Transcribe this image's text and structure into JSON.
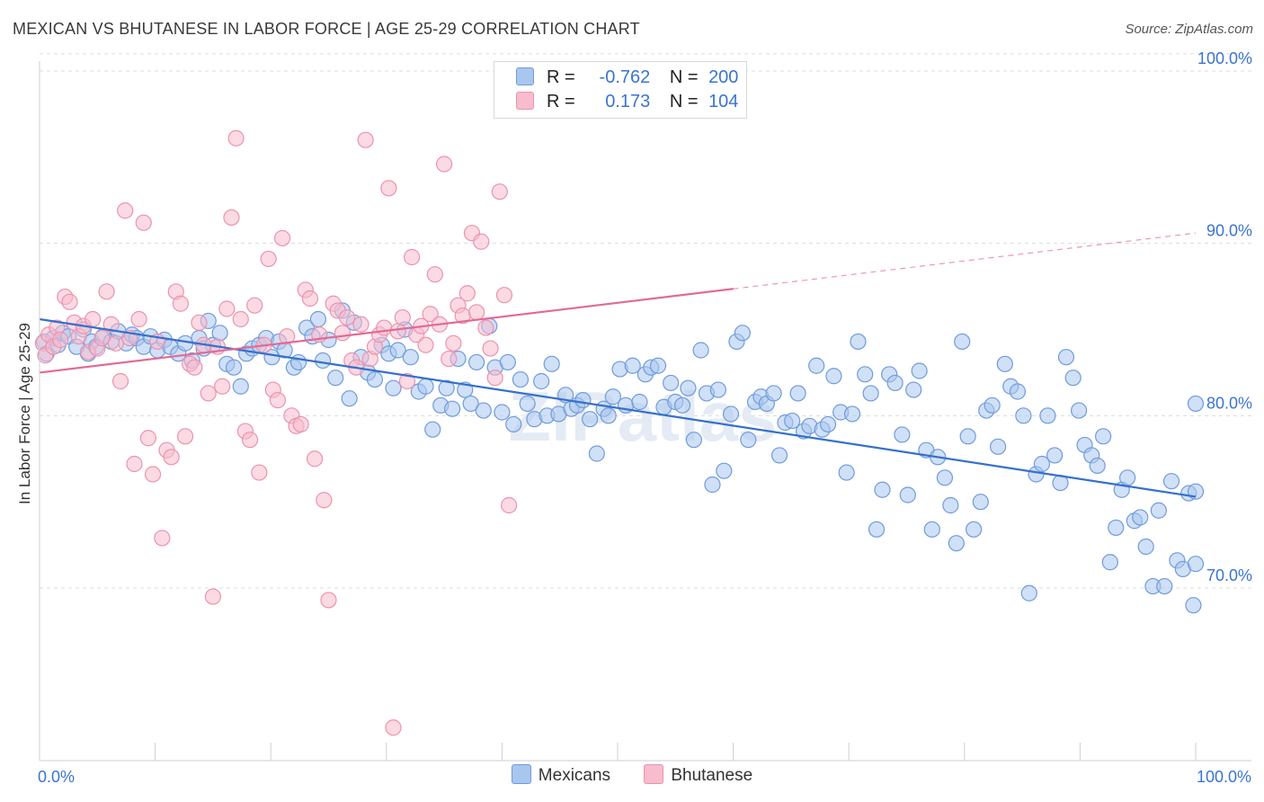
{
  "header": {
    "title": "MEXICAN VS BHUTANESE IN LABOR FORCE | AGE 25-29 CORRELATION CHART",
    "source": "Source: ZipAtlas.com"
  },
  "legend_top": {
    "rows": [
      {
        "r_label": "R =",
        "r_value": "-0.762",
        "n_label": "N =",
        "n_value": "200"
      },
      {
        "r_label": "R =",
        "r_value": "0.173",
        "n_label": "N =",
        "n_value": "104"
      }
    ]
  },
  "colors": {
    "mexicans_fill": "#a9c6ee",
    "mexicans_stroke": "#6f9bdc",
    "mexicans_line": "#3470cc",
    "bhutanese_fill": "#f7bccd",
    "bhutanese_stroke": "#ec92ae",
    "bhutanese_line": "#e36a94",
    "tick_text": "#3b74d1",
    "grid": "#dcdcdc"
  },
  "chart_data": {
    "type": "scatter",
    "title": "MEXICAN VS BHUTANESE IN LABOR FORCE | AGE 25-29 CORRELATION CHART",
    "xlabel": "",
    "ylabel": "In Labor Force | Age 25-29",
    "xlim": [
      0,
      100
    ],
    "ylim": [
      60,
      101
    ],
    "x_tick_labels": [
      "0.0%",
      "100.0%"
    ],
    "y_ticks": [
      70,
      80,
      90,
      100
    ],
    "y_tick_labels": [
      "70.0%",
      "80.0%",
      "90.0%",
      "100.0%"
    ],
    "grid": true,
    "legend_position": "top-center",
    "series": [
      {
        "name": "Mexicans",
        "R": -0.762,
        "N": 200,
        "trend": {
          "x": [
            0,
            100
          ],
          "y": [
            85.6,
            75.3
          ],
          "dashed_after": null
        },
        "points": [
          [
            0.4,
            84.3
          ],
          [
            0.6,
            83.6
          ],
          [
            1.2,
            84.5
          ],
          [
            1.6,
            84.1
          ],
          [
            2.0,
            84.8
          ],
          [
            2.5,
            84.6
          ],
          [
            3.2,
            84.0
          ],
          [
            3.8,
            85.0
          ],
          [
            4.2,
            83.6
          ],
          [
            4.5,
            84.3
          ],
          [
            4.9,
            84.0
          ],
          [
            5.5,
            84.6
          ],
          [
            6.2,
            84.3
          ],
          [
            6.8,
            84.9
          ],
          [
            7.5,
            84.2
          ],
          [
            8.0,
            84.7
          ],
          [
            8.4,
            84.5
          ],
          [
            9.0,
            84.0
          ],
          [
            9.6,
            84.6
          ],
          [
            10.2,
            83.8
          ],
          [
            10.8,
            84.4
          ],
          [
            11.3,
            84.0
          ],
          [
            12.0,
            83.6
          ],
          [
            12.6,
            84.2
          ],
          [
            13.2,
            83.2
          ],
          [
            13.8,
            84.5
          ],
          [
            14.2,
            83.9
          ],
          [
            14.6,
            85.5
          ],
          [
            15.0,
            84.1
          ],
          [
            15.6,
            84.8
          ],
          [
            16.2,
            83.0
          ],
          [
            16.8,
            82.8
          ],
          [
            17.4,
            81.7
          ],
          [
            17.9,
            83.6
          ],
          [
            18.4,
            83.9
          ],
          [
            19.0,
            84.1
          ],
          [
            19.6,
            84.5
          ],
          [
            20.1,
            83.4
          ],
          [
            20.7,
            84.3
          ],
          [
            21.2,
            83.8
          ],
          [
            22.0,
            82.8
          ],
          [
            22.4,
            83.1
          ],
          [
            23.1,
            85.1
          ],
          [
            23.6,
            84.6
          ],
          [
            24.1,
            85.6
          ],
          [
            24.5,
            83.2
          ],
          [
            25.0,
            84.4
          ],
          [
            25.6,
            82.2
          ],
          [
            26.2,
            86.1
          ],
          [
            26.8,
            81.0
          ],
          [
            27.2,
            85.4
          ],
          [
            27.8,
            83.4
          ],
          [
            28.4,
            82.5
          ],
          [
            29.0,
            82.1
          ],
          [
            29.6,
            84.1
          ],
          [
            30.2,
            83.6
          ],
          [
            30.6,
            81.6
          ],
          [
            31.0,
            83.8
          ],
          [
            31.6,
            85.0
          ],
          [
            32.1,
            83.4
          ],
          [
            32.8,
            81.4
          ],
          [
            33.4,
            81.7
          ],
          [
            34.0,
            79.2
          ],
          [
            34.7,
            80.6
          ],
          [
            35.2,
            81.6
          ],
          [
            35.7,
            80.4
          ],
          [
            36.2,
            83.3
          ],
          [
            36.8,
            81.5
          ],
          [
            37.3,
            80.7
          ],
          [
            37.8,
            83.1
          ],
          [
            38.4,
            80.3
          ],
          [
            38.9,
            85.2
          ],
          [
            39.4,
            82.8
          ],
          [
            40.0,
            80.2
          ],
          [
            40.5,
            83.1
          ],
          [
            41.0,
            79.5
          ],
          [
            41.6,
            82.1
          ],
          [
            42.2,
            80.7
          ],
          [
            42.8,
            79.8
          ],
          [
            43.4,
            82.0
          ],
          [
            43.9,
            80.0
          ],
          [
            44.3,
            83.0
          ],
          [
            44.9,
            80.1
          ],
          [
            45.5,
            81.2
          ],
          [
            46.0,
            80.4
          ],
          [
            46.5,
            80.6
          ],
          [
            47.0,
            80.9
          ],
          [
            47.6,
            79.8
          ],
          [
            48.2,
            77.8
          ],
          [
            48.8,
            80.4
          ],
          [
            49.2,
            80.0
          ],
          [
            49.6,
            81.1
          ],
          [
            50.2,
            82.7
          ],
          [
            50.7,
            80.6
          ],
          [
            51.3,
            82.9
          ],
          [
            51.9,
            80.8
          ],
          [
            52.4,
            82.4
          ],
          [
            52.9,
            82.8
          ],
          [
            53.5,
            82.9
          ],
          [
            54.0,
            80.5
          ],
          [
            54.6,
            81.9
          ],
          [
            55.0,
            80.8
          ],
          [
            55.6,
            80.6
          ],
          [
            56.1,
            81.6
          ],
          [
            56.6,
            78.6
          ],
          [
            57.2,
            83.8
          ],
          [
            57.7,
            81.3
          ],
          [
            58.2,
            76.0
          ],
          [
            58.7,
            81.5
          ],
          [
            59.2,
            76.8
          ],
          [
            59.8,
            80.1
          ],
          [
            60.3,
            84.3
          ],
          [
            60.8,
            84.8
          ],
          [
            61.3,
            78.6
          ],
          [
            61.9,
            80.8
          ],
          [
            62.4,
            81.1
          ],
          [
            62.9,
            80.7
          ],
          [
            63.5,
            81.3
          ],
          [
            64.0,
            77.7
          ],
          [
            64.5,
            79.6
          ],
          [
            65.1,
            79.7
          ],
          [
            65.6,
            81.3
          ],
          [
            66.1,
            79.1
          ],
          [
            66.6,
            79.4
          ],
          [
            67.2,
            82.9
          ],
          [
            67.7,
            79.2
          ],
          [
            68.2,
            79.5
          ],
          [
            68.7,
            82.3
          ],
          [
            69.3,
            80.2
          ],
          [
            69.8,
            76.7
          ],
          [
            70.3,
            80.1
          ],
          [
            70.8,
            84.3
          ],
          [
            71.4,
            82.4
          ],
          [
            71.9,
            81.3
          ],
          [
            72.4,
            73.4
          ],
          [
            72.9,
            75.7
          ],
          [
            73.5,
            82.4
          ],
          [
            74.0,
            81.9
          ],
          [
            74.6,
            78.9
          ],
          [
            75.1,
            75.4
          ],
          [
            75.6,
            81.5
          ],
          [
            76.1,
            82.6
          ],
          [
            76.7,
            78.0
          ],
          [
            77.2,
            73.4
          ],
          [
            77.7,
            77.6
          ],
          [
            78.3,
            76.4
          ],
          [
            78.8,
            74.8
          ],
          [
            79.3,
            72.6
          ],
          [
            79.8,
            84.3
          ],
          [
            80.3,
            78.8
          ],
          [
            80.8,
            73.4
          ],
          [
            81.4,
            75.0
          ],
          [
            81.9,
            80.3
          ],
          [
            82.4,
            80.6
          ],
          [
            82.9,
            78.2
          ],
          [
            83.5,
            83.0
          ],
          [
            84.0,
            81.7
          ],
          [
            84.6,
            81.4
          ],
          [
            85.1,
            80.0
          ],
          [
            85.6,
            69.7
          ],
          [
            86.2,
            76.6
          ],
          [
            86.7,
            77.2
          ],
          [
            87.2,
            80.0
          ],
          [
            87.8,
            77.7
          ],
          [
            88.3,
            76.1
          ],
          [
            88.8,
            83.4
          ],
          [
            89.4,
            82.2
          ],
          [
            89.9,
            80.3
          ],
          [
            90.4,
            78.3
          ],
          [
            91.0,
            77.7
          ],
          [
            91.5,
            77.1
          ],
          [
            92.0,
            78.8
          ],
          [
            92.6,
            71.5
          ],
          [
            93.1,
            73.5
          ],
          [
            93.6,
            75.7
          ],
          [
            94.1,
            76.4
          ],
          [
            94.7,
            73.9
          ],
          [
            95.2,
            74.1
          ],
          [
            95.7,
            72.4
          ],
          [
            96.3,
            70.1
          ],
          [
            96.8,
            74.5
          ],
          [
            97.3,
            70.1
          ],
          [
            97.9,
            76.2
          ],
          [
            98.4,
            71.6
          ],
          [
            98.9,
            71.1
          ],
          [
            99.4,
            75.5
          ],
          [
            99.8,
            69.0
          ],
          [
            100.0,
            71.4
          ],
          [
            100.0,
            75.6
          ],
          [
            100.0,
            80.7
          ]
        ]
      },
      {
        "name": "Bhutanese",
        "R": 0.173,
        "N": 104,
        "trend": {
          "x": [
            0,
            100
          ],
          "y": [
            82.5,
            90.6
          ],
          "dashed_after": 60
        },
        "points": [
          [
            0.3,
            84.2
          ],
          [
            0.5,
            83.5
          ],
          [
            0.8,
            84.7
          ],
          [
            1.2,
            84.0
          ],
          [
            1.5,
            85.1
          ],
          [
            1.8,
            84.4
          ],
          [
            2.2,
            86.9
          ],
          [
            2.6,
            86.6
          ],
          [
            3.0,
            85.4
          ],
          [
            3.4,
            84.6
          ],
          [
            3.8,
            85.2
          ],
          [
            4.2,
            83.7
          ],
          [
            4.6,
            85.6
          ],
          [
            5.0,
            83.9
          ],
          [
            5.4,
            84.5
          ],
          [
            5.8,
            87.2
          ],
          [
            6.2,
            85.3
          ],
          [
            6.6,
            84.2
          ],
          [
            7.0,
            82.0
          ],
          [
            7.4,
            91.9
          ],
          [
            7.8,
            84.5
          ],
          [
            8.2,
            77.2
          ],
          [
            8.6,
            85.6
          ],
          [
            9.0,
            91.2
          ],
          [
            9.4,
            78.7
          ],
          [
            9.8,
            76.6
          ],
          [
            10.2,
            84.3
          ],
          [
            10.6,
            72.9
          ],
          [
            11.0,
            78.0
          ],
          [
            11.4,
            77.6
          ],
          [
            11.8,
            87.2
          ],
          [
            12.2,
            86.5
          ],
          [
            12.6,
            78.8
          ],
          [
            13.0,
            83.0
          ],
          [
            13.4,
            82.8
          ],
          [
            13.8,
            85.4
          ],
          [
            14.2,
            84.1
          ],
          [
            14.6,
            81.3
          ],
          [
            15.0,
            69.5
          ],
          [
            15.4,
            84.0
          ],
          [
            15.8,
            81.7
          ],
          [
            16.2,
            86.2
          ],
          [
            16.6,
            91.5
          ],
          [
            17.0,
            96.1
          ],
          [
            17.4,
            85.6
          ],
          [
            17.8,
            79.1
          ],
          [
            18.2,
            78.6
          ],
          [
            18.6,
            86.4
          ],
          [
            19.0,
            76.7
          ],
          [
            19.4,
            84.1
          ],
          [
            19.8,
            89.1
          ],
          [
            20.2,
            81.5
          ],
          [
            20.6,
            80.9
          ],
          [
            21.0,
            90.3
          ],
          [
            21.4,
            84.6
          ],
          [
            21.8,
            80.0
          ],
          [
            22.2,
            79.4
          ],
          [
            22.6,
            79.5
          ],
          [
            23.0,
            87.3
          ],
          [
            23.4,
            86.8
          ],
          [
            23.8,
            77.5
          ],
          [
            24.2,
            84.7
          ],
          [
            24.6,
            75.1
          ],
          [
            25.0,
            69.3
          ],
          [
            25.4,
            86.5
          ],
          [
            25.8,
            86.1
          ],
          [
            26.2,
            84.8
          ],
          [
            26.6,
            85.7
          ],
          [
            27.0,
            83.2
          ],
          [
            27.4,
            82.8
          ],
          [
            27.8,
            85.3
          ],
          [
            28.2,
            96.0
          ],
          [
            28.6,
            83.3
          ],
          [
            29.0,
            84.0
          ],
          [
            29.4,
            84.7
          ],
          [
            29.8,
            85.1
          ],
          [
            30.2,
            93.2
          ],
          [
            30.6,
            61.9
          ],
          [
            31.0,
            84.9
          ],
          [
            31.4,
            85.7
          ],
          [
            31.8,
            82.0
          ],
          [
            32.2,
            89.2
          ],
          [
            32.6,
            84.7
          ],
          [
            33.0,
            85.2
          ],
          [
            33.4,
            84.1
          ],
          [
            33.8,
            85.9
          ],
          [
            34.2,
            88.2
          ],
          [
            34.6,
            85.3
          ],
          [
            35.0,
            94.6
          ],
          [
            35.4,
            83.3
          ],
          [
            35.8,
            84.2
          ],
          [
            36.2,
            86.4
          ],
          [
            36.6,
            85.8
          ],
          [
            37.0,
            87.1
          ],
          [
            37.4,
            90.6
          ],
          [
            37.8,
            86.0
          ],
          [
            38.2,
            90.1
          ],
          [
            38.6,
            85.1
          ],
          [
            39.0,
            83.9
          ],
          [
            39.4,
            82.2
          ],
          [
            39.8,
            93.0
          ],
          [
            40.2,
            87.0
          ],
          [
            40.6,
            74.8
          ],
          [
            59.8,
            100.0
          ]
        ]
      }
    ]
  },
  "bottom_legend": {
    "items": [
      {
        "label": "Mexicans"
      },
      {
        "label": "Bhutanese"
      }
    ]
  },
  "watermark": "ZIPatlas"
}
